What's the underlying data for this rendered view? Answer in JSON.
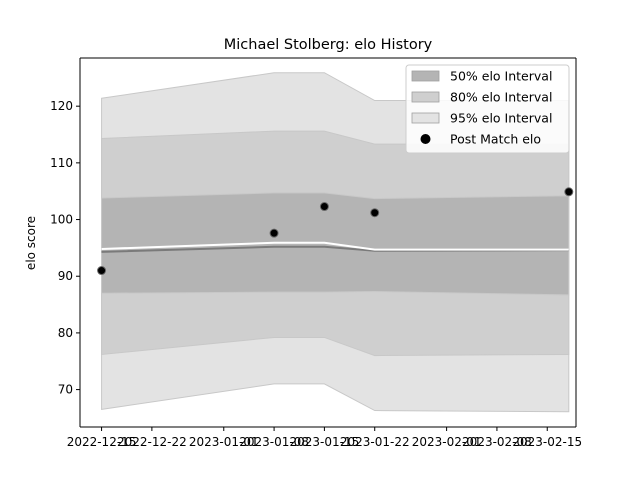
{
  "chart_data": {
    "type": "area",
    "title": "Michael Stolberg: elo History",
    "xlabel": "",
    "ylabel": "elo score",
    "ylim": [
      63.4,
      128.5
    ],
    "xlim": [
      "2022-12-12",
      "2023-02-19"
    ],
    "x_ticks": [
      "2022-12-15",
      "2022-12-22",
      "2023-01-01",
      "2023-01-08",
      "2023-01-15",
      "2023-01-22",
      "2023-02-01",
      "2023-02-08",
      "2023-02-15"
    ],
    "y_ticks": [
      70,
      80,
      90,
      100,
      110,
      120
    ],
    "grid": false,
    "legend_position": "top-right",
    "dates": [
      "2022-12-15",
      "2023-01-08",
      "2023-01-15",
      "2023-01-22",
      "2023-02-18"
    ],
    "bands": [
      {
        "name": "95% elo Interval",
        "color": "#e3e3e3",
        "lower": [
          66.5,
          71.0,
          71.0,
          66.3,
          66.1
        ],
        "upper": [
          121.4,
          125.9,
          125.9,
          121.0,
          121.0
        ]
      },
      {
        "name": "80% elo Interval",
        "color": "#cfcfcf",
        "lower": [
          76.2,
          79.2,
          79.2,
          76.0,
          76.2
        ],
        "upper": [
          114.3,
          115.6,
          115.6,
          113.3,
          113.3
        ]
      },
      {
        "name": "50% elo Interval",
        "color": "#b4b4b4",
        "lower": [
          87.0,
          87.2,
          87.2,
          87.3,
          86.7
        ],
        "upper": [
          103.8,
          104.7,
          104.7,
          103.7,
          104.2
        ]
      }
    ],
    "mean_line": {
      "color": "#7a7a7a",
      "values": [
        94.3,
        95.2,
        95.2,
        94.5,
        94.6
      ]
    },
    "highlight_line": {
      "color": "#ffffff",
      "values": [
        94.8,
        95.9,
        95.9,
        94.7,
        94.7
      ]
    },
    "series": [
      {
        "name": "Post Match elo",
        "color": "#000000",
        "x": [
          "2022-12-15",
          "2023-01-08",
          "2023-01-15",
          "2023-01-22",
          "2023-02-18"
        ],
        "values": [
          91.0,
          97.6,
          102.3,
          101.2,
          104.9
        ]
      }
    ]
  }
}
